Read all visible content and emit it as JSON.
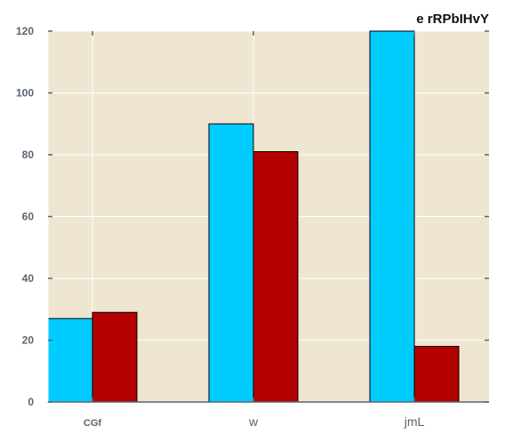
{
  "chart_data": {
    "type": "bar",
    "title": "e rRPbIHvY",
    "categories": [
      "CGf",
      "w",
      "jmL"
    ],
    "series": [
      {
        "values": [
          27,
          90,
          120
        ],
        "color": "#00ccff"
      },
      {
        "values": [
          29,
          81,
          18
        ],
        "color": "#b30000"
      }
    ],
    "ylim": [
      0,
      120
    ],
    "yticks": [
      0,
      20,
      40,
      60,
      80,
      100,
      120
    ],
    "grid": true,
    "plot_background": "#efe6d2",
    "grid_color": "#ffffff",
    "tick_label_color": "#5a6470"
  }
}
